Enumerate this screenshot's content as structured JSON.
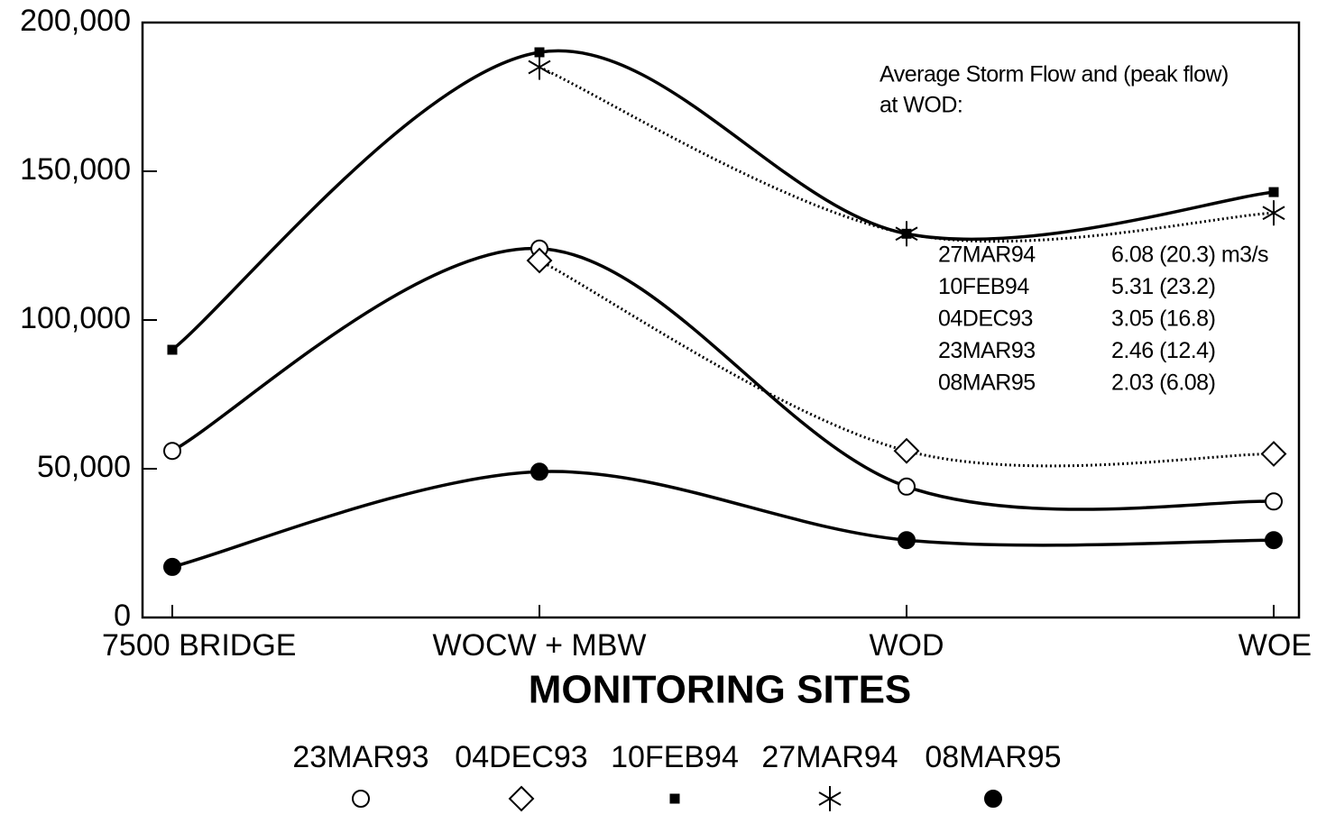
{
  "chart_data": {
    "type": "line",
    "x_label": "MONITORING SITES",
    "categories": [
      "7500 BRIDGE",
      "WOCW + MBW",
      "WOD",
      "WOE"
    ],
    "ylim": [
      0,
      200000
    ],
    "yticks": [
      0,
      {
        "value": 50000,
        "label": "50,000"
      },
      {
        "value": 100000,
        "label": "100,000"
      },
      {
        "value": 150000,
        "label": "150,000"
      },
      {
        "value": 200000,
        "label": "200,000"
      }
    ],
    "series": [
      {
        "name": "23MAR93",
        "color": "#000000",
        "marker": "circle",
        "line": "solid",
        "values": [
          56000,
          124000,
          44000,
          39000
        ]
      },
      {
        "name": "04DEC93",
        "color": "#000000",
        "marker": "diamond",
        "line": "dotted",
        "values": [
          null,
          120000,
          56000,
          55000
        ]
      },
      {
        "name": "10FEB94",
        "color": "#000000",
        "marker": "square",
        "line": "solid",
        "values": [
          90000,
          190000,
          129000,
          143000
        ]
      },
      {
        "name": "27MAR94",
        "color": "#000000",
        "marker": "asterisk",
        "line": "dotted",
        "values": [
          null,
          185000,
          129000,
          136000
        ]
      },
      {
        "name": "08MAR95",
        "color": "#000000",
        "marker": "filled-circle",
        "line": "solid",
        "values": [
          17000,
          49000,
          26000,
          26000
        ]
      }
    ],
    "annotation": {
      "lines": [
        "Average Storm Flow  and  (peak flow)",
        "at WOD:"
      ],
      "rows": [
        [
          "27MAR94",
          "6.08 (20.3) m3/s"
        ],
        [
          "10FEB94",
          "5.31 (23.2)"
        ],
        [
          "04DEC93",
          "3.05 (16.8)"
        ],
        [
          "23MAR93",
          "2.46 (12.4)"
        ],
        [
          "08MAR95",
          "2.03 (6.08)"
        ]
      ]
    }
  }
}
